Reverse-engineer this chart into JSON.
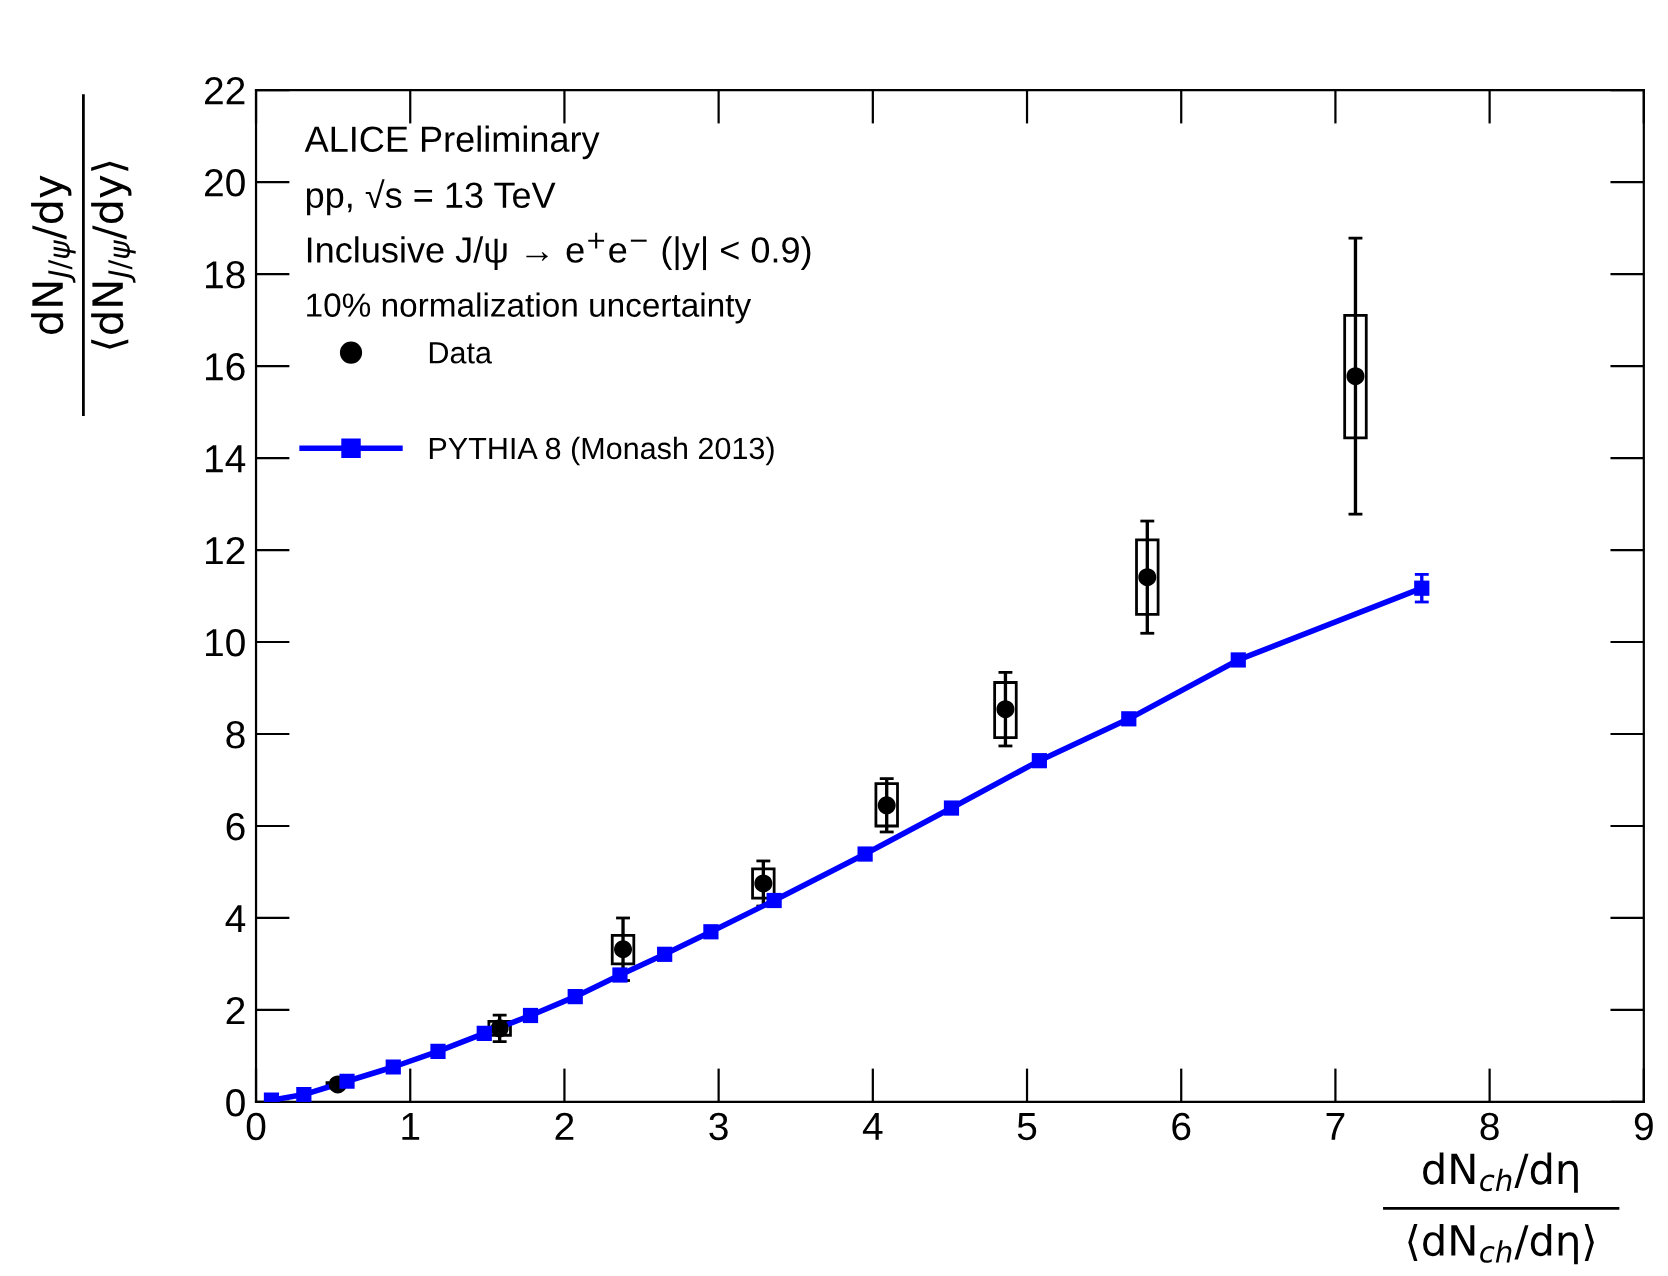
{
  "chart_data": {
    "type": "scatter",
    "xlabel": "dN$_{ch}$/dη\n⟨dN$_{ch}$/dη⟩",
    "ylabel": "dN$_{J/ψ}$/dy\n⟨dN$_{J/ψ}$/dy⟩",
    "annotations": [
      "ALICE Preliminary",
      "pp, √s = 13 TeV",
      "Inclusive J/ψ → e$^{+}$e$^{−}$ (|y| < 0.9)",
      "10% normalization uncertainty"
    ],
    "xlim": [
      0,
      9
    ],
    "xticks": [
      0,
      1,
      2,
      3,
      4,
      5,
      6,
      7,
      8,
      9
    ],
    "ylim": [
      0,
      22
    ],
    "yticks": [
      0,
      2,
      4,
      6,
      8,
      10,
      12,
      14,
      16,
      18,
      20,
      22
    ],
    "grid": false,
    "legend": "top left",
    "series": [
      {
        "name": "Data",
        "marker": "circle",
        "color": "#000000",
        "x": [
          0.53,
          1.58,
          2.38,
          3.29,
          4.09,
          4.86,
          5.78,
          7.13
        ],
        "values": [
          0.38,
          1.6,
          3.32,
          4.75,
          6.45,
          8.54,
          11.41,
          15.78
        ],
        "errors": [
          null,
          0.29,
          0.68,
          0.49,
          0.58,
          0.8,
          1.22,
          3.0
        ]
      },
      {
        "type": "bar",
        "color": "#000000",
        "x": [
          0.53,
          1.58,
          2.38,
          3.29,
          4.09,
          4.86,
          5.78,
          7.13
        ],
        "base": [
          0.34,
          1.45,
          3.0,
          4.43,
          6.0,
          7.92,
          10.6,
          14.44
        ],
        "values": [
          0.08,
          0.3,
          0.62,
          0.64,
          0.92,
          1.2,
          1.62,
          2.66
        ]
      },
      {
        "name": "PYTHIA 8 (Monash 2013)",
        "type": "line",
        "marker": "square",
        "line_style": "solid",
        "color": "#0000ff",
        "x": [
          0.1,
          0.31,
          0.59,
          0.89,
          1.18,
          1.48,
          1.78,
          2.07,
          2.36,
          2.65,
          2.95,
          3.36,
          3.95,
          4.51,
          5.08,
          5.66,
          6.37,
          7.56
        ],
        "values": [
          0.04,
          0.16,
          0.45,
          0.76,
          1.1,
          1.49,
          1.88,
          2.29,
          2.76,
          3.21,
          3.7,
          4.38,
          5.39,
          6.39,
          7.42,
          8.33,
          9.61,
          11.17
        ],
        "errors": [
          null,
          null,
          null,
          null,
          null,
          null,
          null,
          null,
          null,
          null,
          null,
          null,
          null,
          null,
          null,
          null,
          null,
          0.3
        ]
      }
    ]
  }
}
